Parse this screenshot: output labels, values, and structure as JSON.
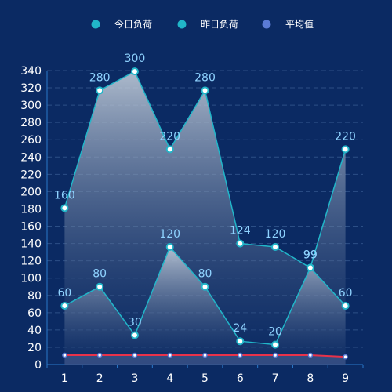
{
  "colors": {
    "background": "#0b2a63",
    "axis": "#2a78c9",
    "grid": "#2c4f86",
    "series_line": "#21b6c9",
    "point_fill": "#ffffff",
    "data_label": "#8fd3ff",
    "average_line": "#e8324a",
    "average_marker": "#5b7bd5",
    "area_top": "#c9d3de",
    "area_bottom": "#0b2a63"
  },
  "legend": [
    {
      "label": "今日负荷",
      "icon": "circle-icon",
      "color": "#21b6c9"
    },
    {
      "label": "昨日负荷",
      "icon": "circle-icon",
      "color": "#21b6c9"
    },
    {
      "label": "平均值",
      "icon": "circle-icon",
      "color": "#5b7bd5"
    }
  ],
  "chart_data": {
    "type": "area",
    "categories": [
      "1",
      "2",
      "3",
      "4",
      "5",
      "6",
      "7",
      "8",
      "9"
    ],
    "series": [
      {
        "name": "今日负荷",
        "values": [
          160,
          280,
          300,
          220,
          280,
          124,
          120,
          99,
          220
        ],
        "point_values": [
          181,
          317,
          339,
          249,
          317,
          140,
          136,
          112,
          249
        ]
      },
      {
        "name": "昨日负荷",
        "values": [
          60,
          80,
          30,
          120,
          80,
          24,
          20,
          99,
          60
        ],
        "point_values": [
          68,
          90,
          34,
          136,
          90,
          27,
          23,
          112,
          68
        ]
      },
      {
        "name": "平均值",
        "values": [
          10,
          10,
          10,
          10,
          10,
          10,
          10,
          10,
          8
        ]
      }
    ],
    "yticks": [
      "0",
      "20",
      "40",
      "60",
      "80",
      "100",
      "120",
      "140",
      "160",
      "180",
      "200",
      "220",
      "240",
      "260",
      "280",
      "300",
      "320",
      "340"
    ],
    "ylim": [
      0,
      340
    ],
    "xlabel": "",
    "ylabel": "",
    "grid": true,
    "legend_position": "top-center"
  }
}
